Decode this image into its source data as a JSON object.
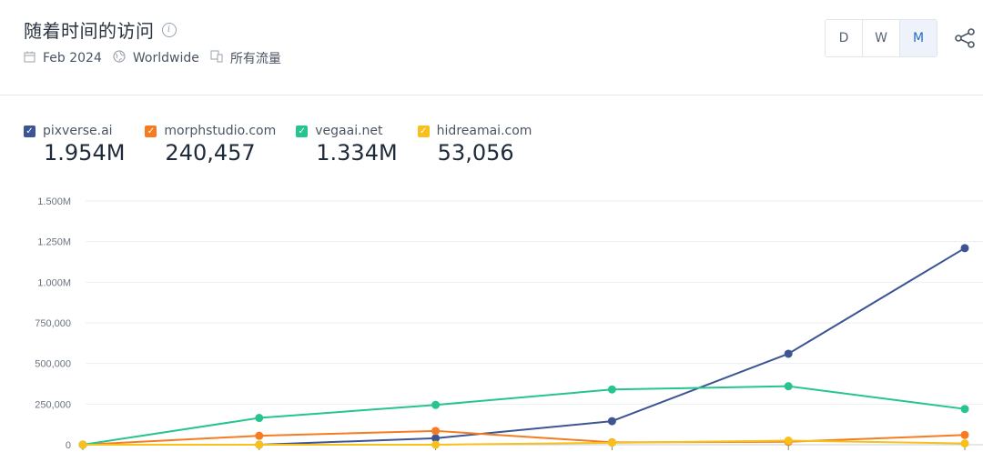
{
  "header": {
    "title": "随着时间的访问",
    "info_icon": "i",
    "date": "Feb 2024",
    "region": "Worldwide",
    "traffic": "所有流量"
  },
  "toggle": {
    "options": [
      "D",
      "W",
      "M"
    ],
    "selected": "M"
  },
  "legend": [
    {
      "name": "pixverse.ai",
      "value": "1.954M",
      "color": "#3e5593"
    },
    {
      "name": "morphstudio.com",
      "value": "240,457",
      "color": "#f57c20"
    },
    {
      "name": "vegaai.net",
      "value": "1.334M",
      "color": "#26c48e"
    },
    {
      "name": "hidreamai.com",
      "value": "53,056",
      "color": "#f8c01a"
    }
  ],
  "chart_data": {
    "type": "line",
    "title": "",
    "xlabel": "",
    "ylabel": "",
    "ylim": [
      0,
      1500000
    ],
    "y_ticks": [
      0,
      250000,
      500000,
      750000,
      1000000,
      1250000,
      1500000
    ],
    "y_tick_labels": [
      "0",
      "250,000",
      "500,000",
      "750,000",
      "1.000M",
      "1.250M",
      "1.500M"
    ],
    "grid": true,
    "legend_position": "top-left",
    "series": [
      {
        "name": "pixverse.ai",
        "color": "#3e5593",
        "values": [
          0,
          0,
          40000,
          145000,
          560000,
          1210000
        ]
      },
      {
        "name": "morphstudio.com",
        "color": "#f57c20",
        "values": [
          0,
          55000,
          85000,
          15000,
          18000,
          60000
        ]
      },
      {
        "name": "vegaai.net",
        "color": "#26c48e",
        "values": [
          0,
          165000,
          245000,
          340000,
          360000,
          220000
        ]
      },
      {
        "name": "hidreamai.com",
        "color": "#f8c01a",
        "values": [
          0,
          0,
          0,
          12000,
          25000,
          8000
        ]
      }
    ]
  }
}
